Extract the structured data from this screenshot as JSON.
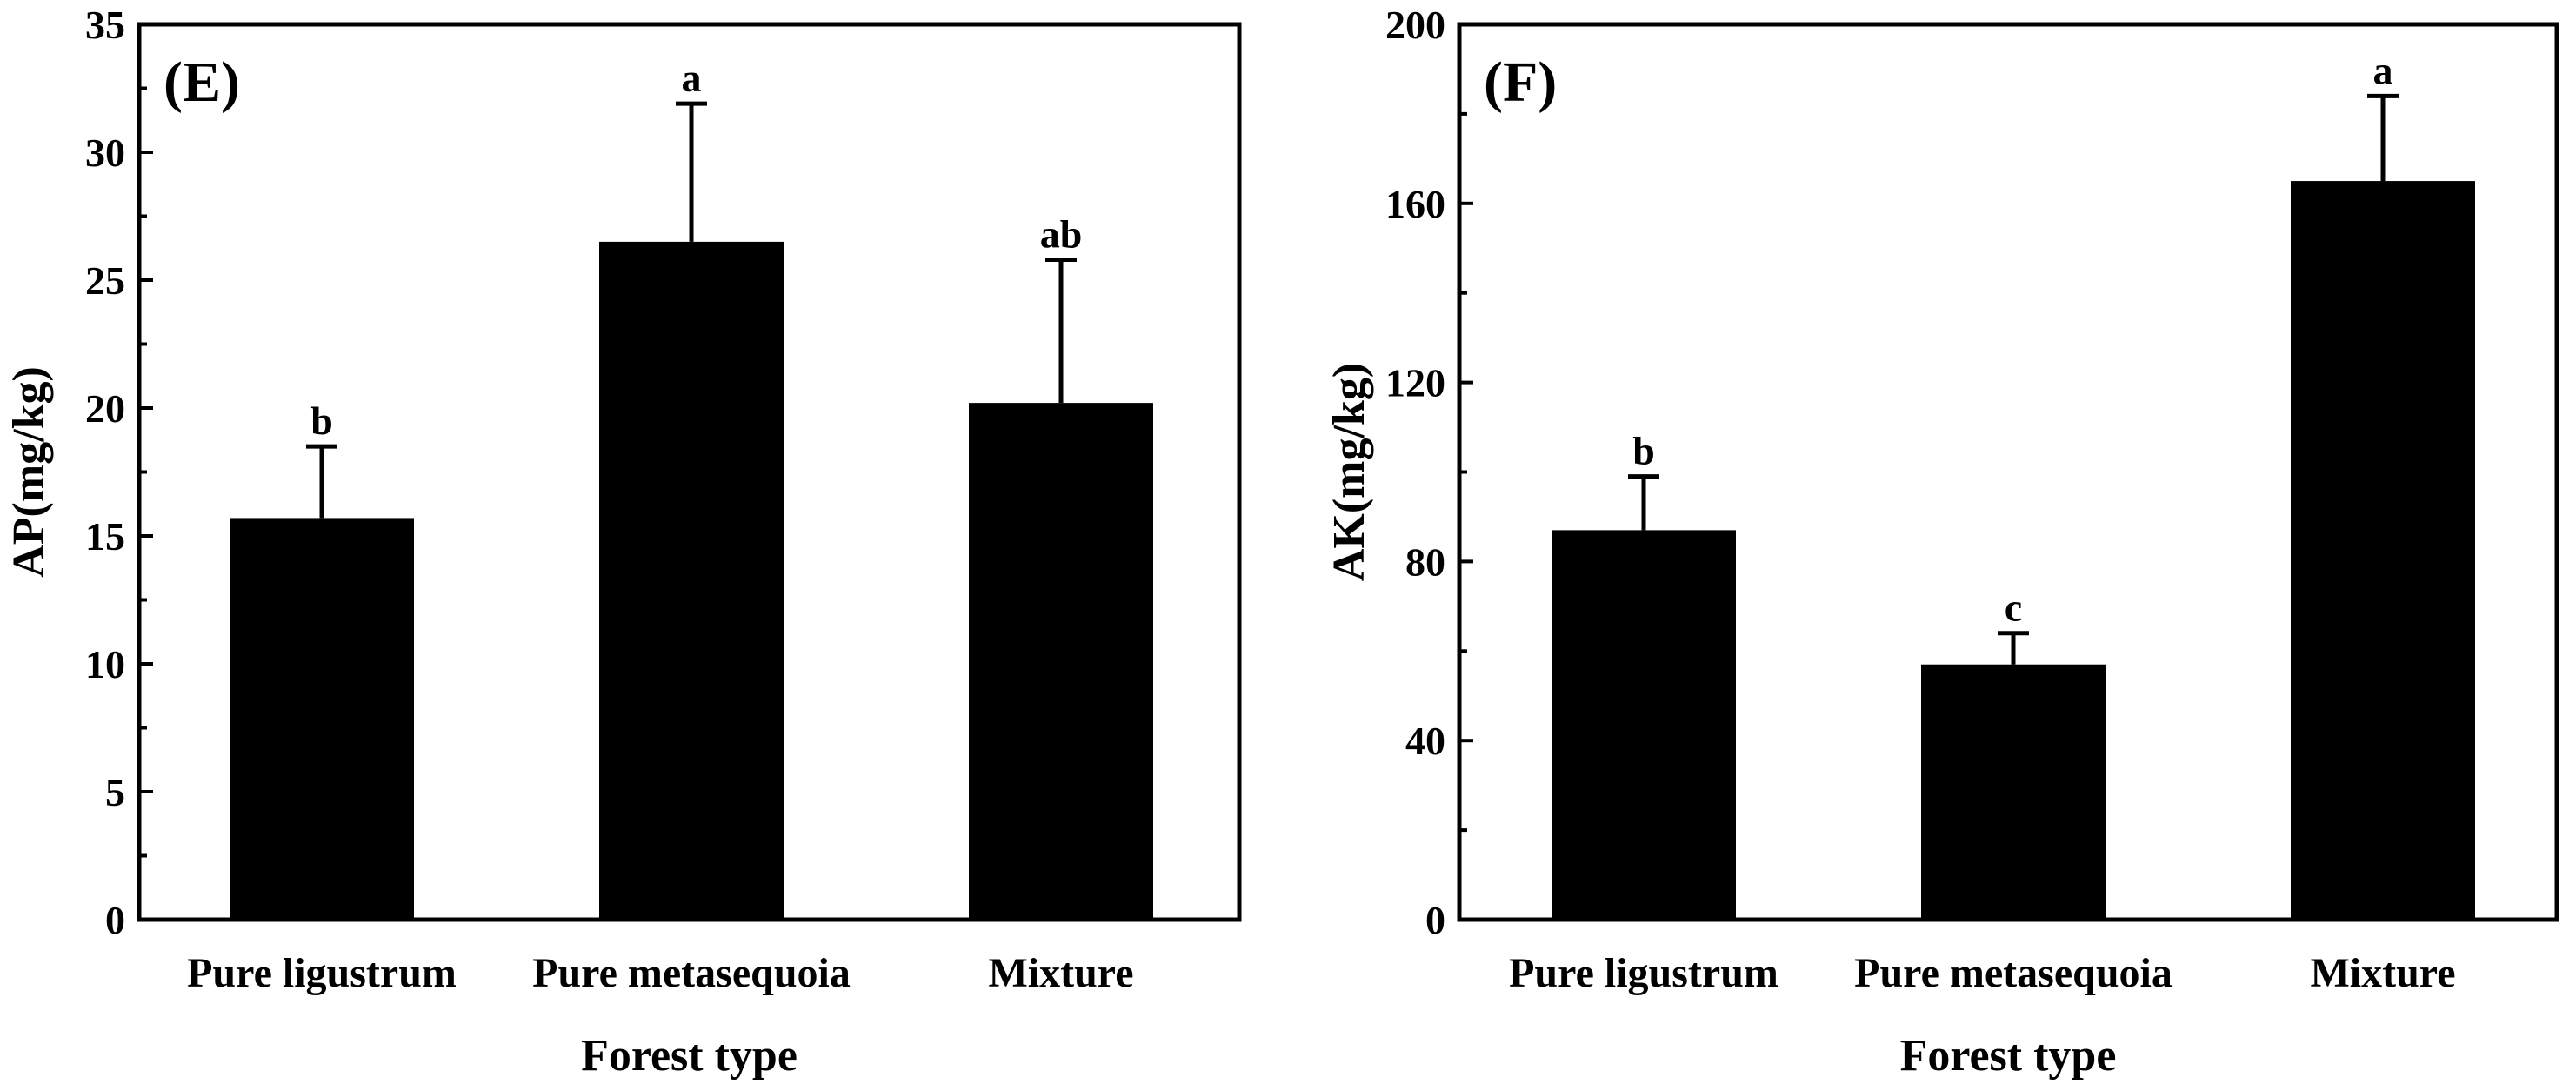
{
  "chart_data": [
    {
      "type": "bar",
      "panel_label": "(E)",
      "categories": [
        "Pure ligustrum",
        "Pure metasequoia",
        "Mixture"
      ],
      "values": [
        15.7,
        26.5,
        20.2
      ],
      "errors": [
        2.8,
        5.4,
        5.6
      ],
      "significance": [
        "b",
        "a",
        "ab"
      ],
      "xlabel": "Forest type",
      "ylabel": "AP(mg/kg)",
      "ylim": [
        0,
        35
      ],
      "yticks": [
        0,
        5,
        10,
        15,
        20,
        25,
        30,
        35
      ],
      "ytick_labels": [
        "0",
        "5",
        "10",
        "15",
        "20",
        "25",
        "30",
        "35"
      ],
      "minor_ytick_step": 2.5,
      "color": "#000000"
    },
    {
      "type": "bar",
      "panel_label": "(F)",
      "categories": [
        "Pure ligustrum",
        "Pure metasequoia",
        "Mixture"
      ],
      "values": [
        87,
        57,
        165
      ],
      "errors": [
        12,
        7,
        19
      ],
      "significance": [
        "b",
        "c",
        "a"
      ],
      "xlabel": "Forest type",
      "ylabel": "AK(mg/kg)",
      "ylim": [
        0,
        200
      ],
      "yticks": [
        0,
        40,
        80,
        120,
        160,
        200
      ],
      "ytick_labels": [
        "0",
        "40",
        "80",
        "120",
        "160",
        "200"
      ],
      "minor_ytick_step": 20,
      "color": "#000000"
    }
  ]
}
